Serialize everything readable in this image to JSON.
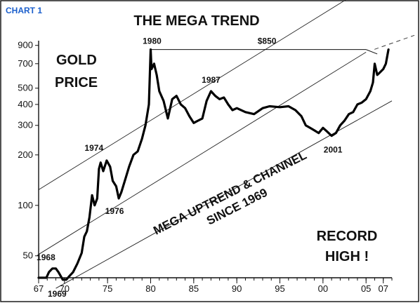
{
  "chart_tag": "CHART 1",
  "chart_data": {
    "type": "line",
    "title": "THE MEGA TREND",
    "inner_label": [
      "GOLD",
      "PRICE"
    ],
    "xlabel": "",
    "ylabel": "",
    "y_scale": "log",
    "ylim": [
      37,
      960
    ],
    "xlim": [
      1967,
      2008
    ],
    "y_ticks": [
      50,
      100,
      200,
      300,
      400,
      500,
      700,
      900
    ],
    "x_ticks": [
      {
        "year": 1967,
        "label": "67"
      },
      {
        "year": 1970,
        "label": "70"
      },
      {
        "year": 1975,
        "label": "75"
      },
      {
        "year": 1980,
        "label": "80"
      },
      {
        "year": 1985,
        "label": "85"
      },
      {
        "year": 1990,
        "label": "90"
      },
      {
        "year": 1995,
        "label": "95"
      },
      {
        "year": 2000,
        "label": "00"
      },
      {
        "year": 2005,
        "label": "05"
      },
      {
        "year": 2007,
        "label": "07"
      }
    ],
    "series": [
      {
        "name": "",
        "x": [
          1967.0,
          1967.9,
          1968.2,
          1968.6,
          1969.0,
          1969.3,
          1969.8,
          1970.2,
          1970.6,
          1971.0,
          1971.5,
          1972.0,
          1972.3,
          1972.6,
          1972.9,
          1973.2,
          1973.5,
          1973.8,
          1974.0,
          1974.2,
          1974.5,
          1974.9,
          1975.3,
          1975.6,
          1976.0,
          1976.3,
          1976.6,
          1977.0,
          1977.5,
          1978.0,
          1978.5,
          1979.0,
          1979.4,
          1979.8,
          1980.0,
          1980.1,
          1980.4,
          1980.7,
          1981.0,
          1981.5,
          1982.0,
          1982.5,
          1983.0,
          1983.5,
          1984.0,
          1984.5,
          1985.0,
          1985.5,
          1986.0,
          1986.5,
          1987.0,
          1987.5,
          1988.0,
          1988.5,
          1989.0,
          1989.5,
          1990.0,
          1991.0,
          1992.0,
          1993.0,
          1993.8,
          1995.0,
          1996.0,
          1996.8,
          1997.5,
          1998.0,
          1998.5,
          1999.0,
          1999.5,
          2000.0,
          2000.5,
          2001.0,
          2001.5,
          2002.0,
          2002.5,
          2003.0,
          2003.5,
          2004.0,
          2004.5,
          2005.0,
          2005.5,
          2005.8,
          2006.0,
          2006.3,
          2006.6,
          2007.0,
          2007.3,
          2007.6
        ],
        "y": [
          37,
          37,
          40,
          42,
          42,
          40,
          36,
          36,
          38,
          40,
          45,
          52,
          65,
          70,
          85,
          115,
          100,
          110,
          165,
          180,
          160,
          185,
          170,
          140,
          130,
          110,
          120,
          140,
          170,
          200,
          210,
          250,
          300,
          400,
          850,
          650,
          700,
          600,
          480,
          420,
          330,
          430,
          450,
          400,
          380,
          340,
          310,
          320,
          330,
          420,
          480,
          450,
          430,
          440,
          400,
          370,
          380,
          360,
          350,
          380,
          390,
          385,
          390,
          370,
          340,
          300,
          290,
          280,
          270,
          290,
          275,
          260,
          270,
          300,
          320,
          350,
          360,
          400,
          410,
          430,
          480,
          540,
          700,
          600,
          620,
          650,
          700,
          850
        ]
      }
    ],
    "annotations": [
      {
        "text": "1968",
        "x": 1968.5,
        "y": 42
      },
      {
        "text": "1969",
        "x": 1969.8,
        "y": 36
      },
      {
        "text": "1974",
        "x": 1974.4,
        "y": 185
      },
      {
        "text": "1976",
        "x": 1976.3,
        "y": 110
      },
      {
        "text": "1980",
        "x": 1980.0,
        "y": 850
      },
      {
        "text": "$850",
        "x": 1993.5,
        "y": 850
      },
      {
        "text": "1987",
        "x": 1987.5,
        "y": 480
      },
      {
        "text": "2001",
        "x": 2001.0,
        "y": 260
      }
    ],
    "channel_lines": [
      {
        "x1": 1967.0,
        "y1": 124,
        "x2": 2005.0,
        "y2": 2000
      },
      {
        "x1": 1967.0,
        "y1": 51,
        "x2": 2005.0,
        "y2": 820
      },
      {
        "x1": 1969.0,
        "y1": 32,
        "x2": 2008.0,
        "y2": 420
      }
    ],
    "channel_text": [
      "MEGA UPTREND & CHANNEL",
      "SINCE 1969"
    ],
    "record_text": [
      "RECORD",
      "HIGH !"
    ],
    "grid": false,
    "legend": "none"
  }
}
